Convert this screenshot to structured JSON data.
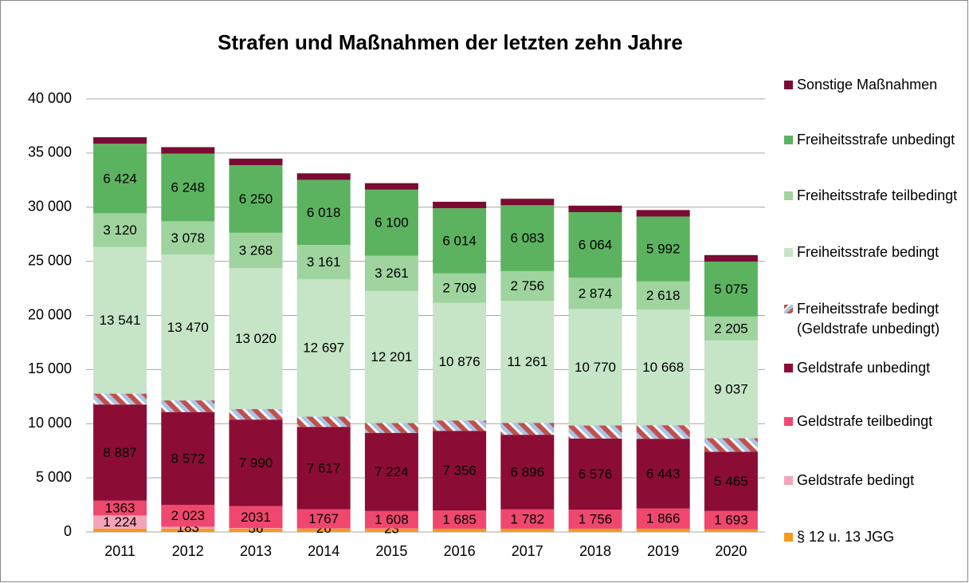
{
  "chart_data": {
    "type": "stacked_bar",
    "title": "Strafen und Maßnahmen der letzten zehn Jahre",
    "categories": [
      "2011",
      "2012",
      "2013",
      "2014",
      "2015",
      "2016",
      "2017",
      "2018",
      "2019",
      "2020"
    ],
    "ylim": [
      0,
      40000
    ],
    "yticks": [
      0,
      {
        "value": 5000,
        "label": "5 000"
      },
      {
        "value": 10000,
        "label": "10 000"
      },
      {
        "value": 15000,
        "label": "15 000"
      },
      {
        "value": 20000,
        "label": "20 000"
      },
      {
        "value": 25000,
        "label": "25 000"
      },
      {
        "value": 30000,
        "label": "30 000"
      },
      {
        "value": 35000,
        "label": "35 000"
      },
      {
        "value": 40000,
        "label": "40 000"
      }
    ],
    "grid": true,
    "legend": "right",
    "series": [
      {
        "name": "§ 12 u. 13 JGG",
        "color": "#f59a1c",
        "values": [
          300,
          300,
          300,
          300,
          300,
          300,
          300,
          300,
          300,
          250
        ]
      },
      {
        "name": "Geldstrafe bedingt",
        "color": "#f4a3b8",
        "values": [
          1224,
          183,
          56,
          26,
          23,
          0,
          0,
          0,
          0,
          0
        ],
        "value_labels": [
          "1 224",
          "183",
          "56",
          "26",
          "23",
          null,
          null,
          null,
          null,
          null
        ]
      },
      {
        "name": "Geldstrafe teilbedingt",
        "color": "#f0476f",
        "values": [
          1363,
          2023,
          2031,
          1767,
          1608,
          1685,
          1782,
          1756,
          1866,
          1693
        ],
        "value_labels": [
          "1363",
          "2 023",
          "2031",
          "1767",
          "1 608",
          "1 685",
          "1 782",
          "1 756",
          "1 866",
          "1 693"
        ]
      },
      {
        "name": "Geldstrafe unbedingt",
        "color": "#8b0d36",
        "values": [
          8887,
          8572,
          7990,
          7617,
          7224,
          7356,
          6896,
          6576,
          6443,
          5465
        ],
        "value_labels": [
          "8 887",
          "8 572",
          "7 990",
          "7 617",
          "7 224",
          "7 356",
          "6 896",
          "6 576",
          "6 443",
          "5 465"
        ]
      },
      {
        "name": "Freiheitsstrafe bedingt (Geldstrafe unbedingt)",
        "color": "#c0504d",
        "hatch": true,
        "values": [
          1000,
          1070,
          970,
          940,
          900,
          960,
          1100,
          1200,
          1250,
          1250
        ]
      },
      {
        "name": "Freiheitsstrafe bedingt",
        "color": "#c6e4c6",
        "values": [
          13541,
          13470,
          13020,
          12697,
          12201,
          10876,
          11261,
          10770,
          10668,
          9037
        ],
        "value_labels": [
          "13 541",
          "13 470",
          "13 020",
          "12 697",
          "12 201",
          "10 876",
          "11 261",
          "10 770",
          "10 668",
          "9 037"
        ]
      },
      {
        "name": "Freiheitsstrafe teilbedingt",
        "color": "#9fd49f",
        "values": [
          3120,
          3078,
          3268,
          3161,
          3261,
          2709,
          2756,
          2874,
          2618,
          2205
        ],
        "value_labels": [
          "3 120",
          "3 078",
          "3 268",
          "3 161",
          "3 261",
          "2 709",
          "2 756",
          "2 874",
          "2 618",
          "2 205"
        ]
      },
      {
        "name": "Freiheitsstrafe unbedingt",
        "color": "#5cb35f",
        "values": [
          6424,
          6248,
          6250,
          6018,
          6100,
          6014,
          6083,
          6064,
          5992,
          5075
        ],
        "value_labels": [
          "6 424",
          "6 248",
          "6 250",
          "6 018",
          "6 100",
          "6 014",
          "6 083",
          "6 064",
          "5 992",
          "5 075"
        ]
      },
      {
        "name": "Sonstige Maßnahmen",
        "color": "#7a0c34",
        "values": [
          600,
          600,
          600,
          600,
          600,
          600,
          600,
          600,
          600,
          600
        ]
      }
    ]
  }
}
